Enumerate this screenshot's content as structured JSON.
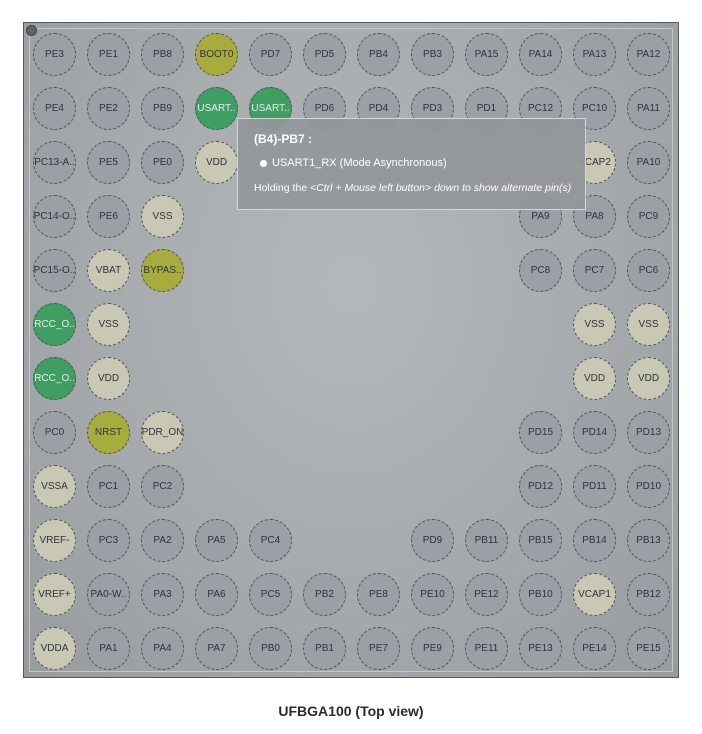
{
  "caption": "UFBGA100 (Top view)",
  "tooltip": {
    "title": "(B4)-PB7 :",
    "signal": "USART1_RX (Mode Asynchronous)",
    "hint_prefix": "Holding the ",
    "hint_keys": "<Ctrl + Mouse left button> down to show alternate pin(s)"
  },
  "colors": {
    "gpio": "#9aa0a5",
    "power": "#c8c8b4",
    "assigned": "#3f9e64",
    "special": "#a8ac3c"
  },
  "grid": [
    [
      {
        "l": "PE3",
        "t": "gpio"
      },
      {
        "l": "PE1",
        "t": "gpio"
      },
      {
        "l": "PB8",
        "t": "gpio"
      },
      {
        "l": "BOOT0",
        "t": "special"
      },
      {
        "l": "PD7",
        "t": "gpio"
      },
      {
        "l": "PD5",
        "t": "gpio"
      },
      {
        "l": "PB4",
        "t": "gpio"
      },
      {
        "l": "PB3",
        "t": "gpio"
      },
      {
        "l": "PA15",
        "t": "gpio"
      },
      {
        "l": "PA14",
        "t": "gpio"
      },
      {
        "l": "PA13",
        "t": "gpio"
      },
      {
        "l": "PA12",
        "t": "gpio"
      }
    ],
    [
      {
        "l": "PE4",
        "t": "gpio"
      },
      {
        "l": "PE2",
        "t": "gpio"
      },
      {
        "l": "PB9",
        "t": "gpio"
      },
      {
        "l": "USART..",
        "t": "assigned"
      },
      {
        "l": "USART..",
        "t": "assigned"
      },
      {
        "l": "PD6",
        "t": "gpio"
      },
      {
        "l": "PD4",
        "t": "gpio"
      },
      {
        "l": "PD3",
        "t": "gpio"
      },
      {
        "l": "PD1",
        "t": "gpio"
      },
      {
        "l": "PC12",
        "t": "gpio"
      },
      {
        "l": "PC10",
        "t": "gpio"
      },
      {
        "l": "PA11",
        "t": "gpio"
      }
    ],
    [
      {
        "l": "PC13-A..",
        "t": "gpio"
      },
      {
        "l": "PE5",
        "t": "gpio"
      },
      {
        "l": "PE0",
        "t": "gpio"
      },
      {
        "l": "VDD",
        "t": "power"
      },
      {
        "l": "",
        "t": "hidden"
      },
      {
        "l": "",
        "t": "hidden"
      },
      {
        "l": "",
        "t": "hidden"
      },
      {
        "l": "",
        "t": "hidden"
      },
      {
        "l": "",
        "t": "hidden"
      },
      {
        "l": "",
        "t": "hidden"
      },
      {
        "l": "VCAP2",
        "t": "power"
      },
      {
        "l": "PA10",
        "t": "gpio"
      }
    ],
    [
      {
        "l": "PC14-O..",
        "t": "gpio"
      },
      {
        "l": "PE6",
        "t": "gpio"
      },
      {
        "l": "VSS",
        "t": "power"
      },
      {
        "l": "",
        "t": "hidden"
      },
      {
        "l": "",
        "t": "hidden"
      },
      {
        "l": "",
        "t": "hidden"
      },
      {
        "l": "",
        "t": "hidden"
      },
      {
        "l": "",
        "t": "hidden"
      },
      {
        "l": "",
        "t": "hidden"
      },
      {
        "l": "PA9",
        "t": "gpio"
      },
      {
        "l": "PA8",
        "t": "gpio"
      },
      {
        "l": "PC9",
        "t": "gpio"
      }
    ],
    [
      {
        "l": "PC15-O..",
        "t": "gpio"
      },
      {
        "l": "VBAT",
        "t": "power"
      },
      {
        "l": "BYPAS..",
        "t": "special"
      },
      {
        "l": "",
        "t": "hidden"
      },
      {
        "l": "",
        "t": "hidden"
      },
      {
        "l": "",
        "t": "hidden"
      },
      {
        "l": "",
        "t": "hidden"
      },
      {
        "l": "",
        "t": "hidden"
      },
      {
        "l": "",
        "t": "hidden"
      },
      {
        "l": "PC8",
        "t": "gpio"
      },
      {
        "l": "PC7",
        "t": "gpio"
      },
      {
        "l": "PC6",
        "t": "gpio"
      }
    ],
    [
      {
        "l": "RCC_O..",
        "t": "assigned"
      },
      {
        "l": "VSS",
        "t": "power"
      },
      {
        "l": "",
        "t": "hidden"
      },
      {
        "l": "",
        "t": "hidden"
      },
      {
        "l": "",
        "t": "hidden"
      },
      {
        "l": "",
        "t": "hidden"
      },
      {
        "l": "",
        "t": "hidden"
      },
      {
        "l": "",
        "t": "hidden"
      },
      {
        "l": "",
        "t": "hidden"
      },
      {
        "l": "",
        "t": "hidden"
      },
      {
        "l": "VSS",
        "t": "power"
      },
      {
        "l": "VSS",
        "t": "power"
      }
    ],
    [
      {
        "l": "RCC_O..",
        "t": "assigned"
      },
      {
        "l": "VDD",
        "t": "power"
      },
      {
        "l": "",
        "t": "hidden"
      },
      {
        "l": "",
        "t": "hidden"
      },
      {
        "l": "",
        "t": "hidden"
      },
      {
        "l": "",
        "t": "hidden"
      },
      {
        "l": "",
        "t": "hidden"
      },
      {
        "l": "",
        "t": "hidden"
      },
      {
        "l": "",
        "t": "hidden"
      },
      {
        "l": "",
        "t": "hidden"
      },
      {
        "l": "VDD",
        "t": "power"
      },
      {
        "l": "VDD",
        "t": "power"
      }
    ],
    [
      {
        "l": "PC0",
        "t": "gpio"
      },
      {
        "l": "NRST",
        "t": "special"
      },
      {
        "l": "PDR_ON",
        "t": "power"
      },
      {
        "l": "",
        "t": "hidden"
      },
      {
        "l": "",
        "t": "hidden"
      },
      {
        "l": "",
        "t": "hidden"
      },
      {
        "l": "",
        "t": "hidden"
      },
      {
        "l": "",
        "t": "hidden"
      },
      {
        "l": "",
        "t": "hidden"
      },
      {
        "l": "PD15",
        "t": "gpio"
      },
      {
        "l": "PD14",
        "t": "gpio"
      },
      {
        "l": "PD13",
        "t": "gpio"
      }
    ],
    [
      {
        "l": "VSSA",
        "t": "power"
      },
      {
        "l": "PC1",
        "t": "gpio"
      },
      {
        "l": "PC2",
        "t": "gpio"
      },
      {
        "l": "",
        "t": "hidden"
      },
      {
        "l": "",
        "t": "hidden"
      },
      {
        "l": "",
        "t": "hidden"
      },
      {
        "l": "",
        "t": "hidden"
      },
      {
        "l": "",
        "t": "hidden"
      },
      {
        "l": "",
        "t": "hidden"
      },
      {
        "l": "PD12",
        "t": "gpio"
      },
      {
        "l": "PD11",
        "t": "gpio"
      },
      {
        "l": "PD10",
        "t": "gpio"
      }
    ],
    [
      {
        "l": "VREF-",
        "t": "power"
      },
      {
        "l": "PC3",
        "t": "gpio"
      },
      {
        "l": "PA2",
        "t": "gpio"
      },
      {
        "l": "PA5",
        "t": "gpio"
      },
      {
        "l": "PC4",
        "t": "gpio"
      },
      {
        "l": "",
        "t": "hidden"
      },
      {
        "l": "",
        "t": "hidden"
      },
      {
        "l": "PD9",
        "t": "gpio"
      },
      {
        "l": "PB11",
        "t": "gpio"
      },
      {
        "l": "PB15",
        "t": "gpio"
      },
      {
        "l": "PB14",
        "t": "gpio"
      },
      {
        "l": "PB13",
        "t": "gpio"
      }
    ],
    [
      {
        "l": "VREF+",
        "t": "power"
      },
      {
        "l": "PA0-W..",
        "t": "gpio"
      },
      {
        "l": "PA3",
        "t": "gpio"
      },
      {
        "l": "PA6",
        "t": "gpio"
      },
      {
        "l": "PC5",
        "t": "gpio"
      },
      {
        "l": "PB2",
        "t": "gpio"
      },
      {
        "l": "PE8",
        "t": "gpio"
      },
      {
        "l": "PE10",
        "t": "gpio"
      },
      {
        "l": "PE12",
        "t": "gpio"
      },
      {
        "l": "PB10",
        "t": "gpio"
      },
      {
        "l": "VCAP1",
        "t": "power"
      },
      {
        "l": "PB12",
        "t": "gpio"
      }
    ],
    [
      {
        "l": "VDDA",
        "t": "power"
      },
      {
        "l": "PA1",
        "t": "gpio"
      },
      {
        "l": "PA4",
        "t": "gpio"
      },
      {
        "l": "PA7",
        "t": "gpio"
      },
      {
        "l": "PB0",
        "t": "gpio"
      },
      {
        "l": "PB1",
        "t": "gpio"
      },
      {
        "l": "PE7",
        "t": "gpio"
      },
      {
        "l": "PE9",
        "t": "gpio"
      },
      {
        "l": "PE11",
        "t": "gpio"
      },
      {
        "l": "PE13",
        "t": "gpio"
      },
      {
        "l": "PE14",
        "t": "gpio"
      },
      {
        "l": "PE15",
        "t": "gpio"
      }
    ]
  ]
}
